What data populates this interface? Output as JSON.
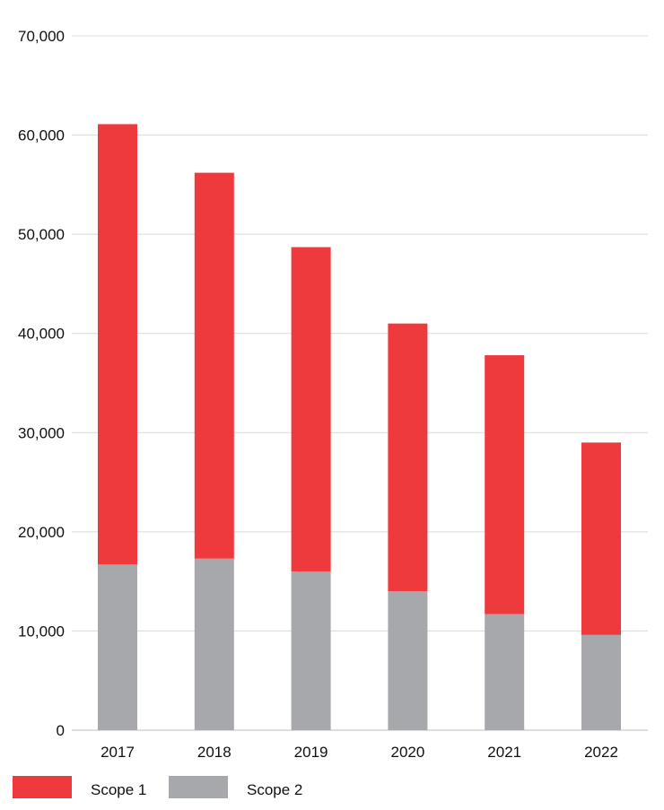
{
  "chart_data": {
    "type": "bar",
    "stacked": true,
    "title": "",
    "xlabel": "",
    "ylabel": "",
    "categories": [
      "2017",
      "2018",
      "2019",
      "2020",
      "2021",
      "2022"
    ],
    "series": [
      {
        "name": "Scope 2",
        "color": "#a7a8ab",
        "values": [
          16700,
          17300,
          16000,
          14000,
          11700,
          9600
        ]
      },
      {
        "name": "Scope 1",
        "color": "#ef3a3d",
        "values": [
          44400,
          38900,
          32700,
          27000,
          26100,
          19400
        ]
      }
    ],
    "ylim": [
      0,
      70000
    ],
    "y_ticks": [
      0,
      10000,
      20000,
      30000,
      40000,
      50000,
      60000,
      70000
    ],
    "y_tick_labels": [
      "0",
      "10,000",
      "20,000",
      "30,000",
      "40,000",
      "50,000",
      "60,000",
      "70,000"
    ],
    "grid": true,
    "legend": {
      "placement": "bottom-left",
      "items": [
        {
          "label": "Scope 1",
          "color": "#ef3a3d"
        },
        {
          "label": "Scope 2",
          "color": "#a7a8ab"
        }
      ]
    }
  }
}
